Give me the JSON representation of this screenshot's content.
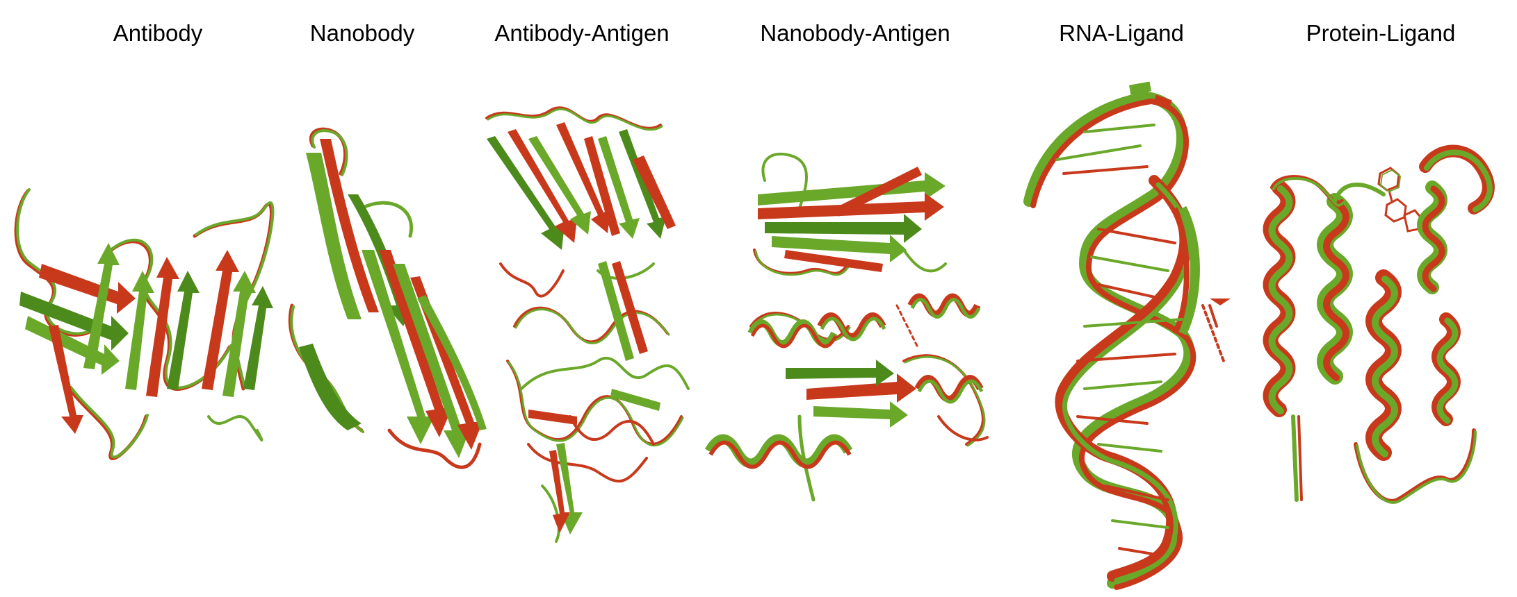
{
  "colors": {
    "predicted": "#6aa82a",
    "predicted_dark": "#4d8a1c",
    "reference": "#c8391c",
    "reference_dark": "#9e2a12"
  },
  "panels": [
    {
      "label": "Antibody",
      "structure_icon": "antibody-ribbon-icon"
    },
    {
      "label": "Nanobody",
      "structure_icon": "nanobody-ribbon-icon"
    },
    {
      "label": "Antibody-Antigen",
      "structure_icon": "antibody-antigen-ribbon-icon"
    },
    {
      "label": "Nanobody-Antigen",
      "structure_icon": "nanobody-antigen-ribbon-icon"
    },
    {
      "label": "RNA-Ligand",
      "structure_icon": "rna-ligand-ribbon-icon"
    },
    {
      "label": "Protein-Ligand",
      "structure_icon": "protein-ligand-ribbon-icon"
    }
  ]
}
